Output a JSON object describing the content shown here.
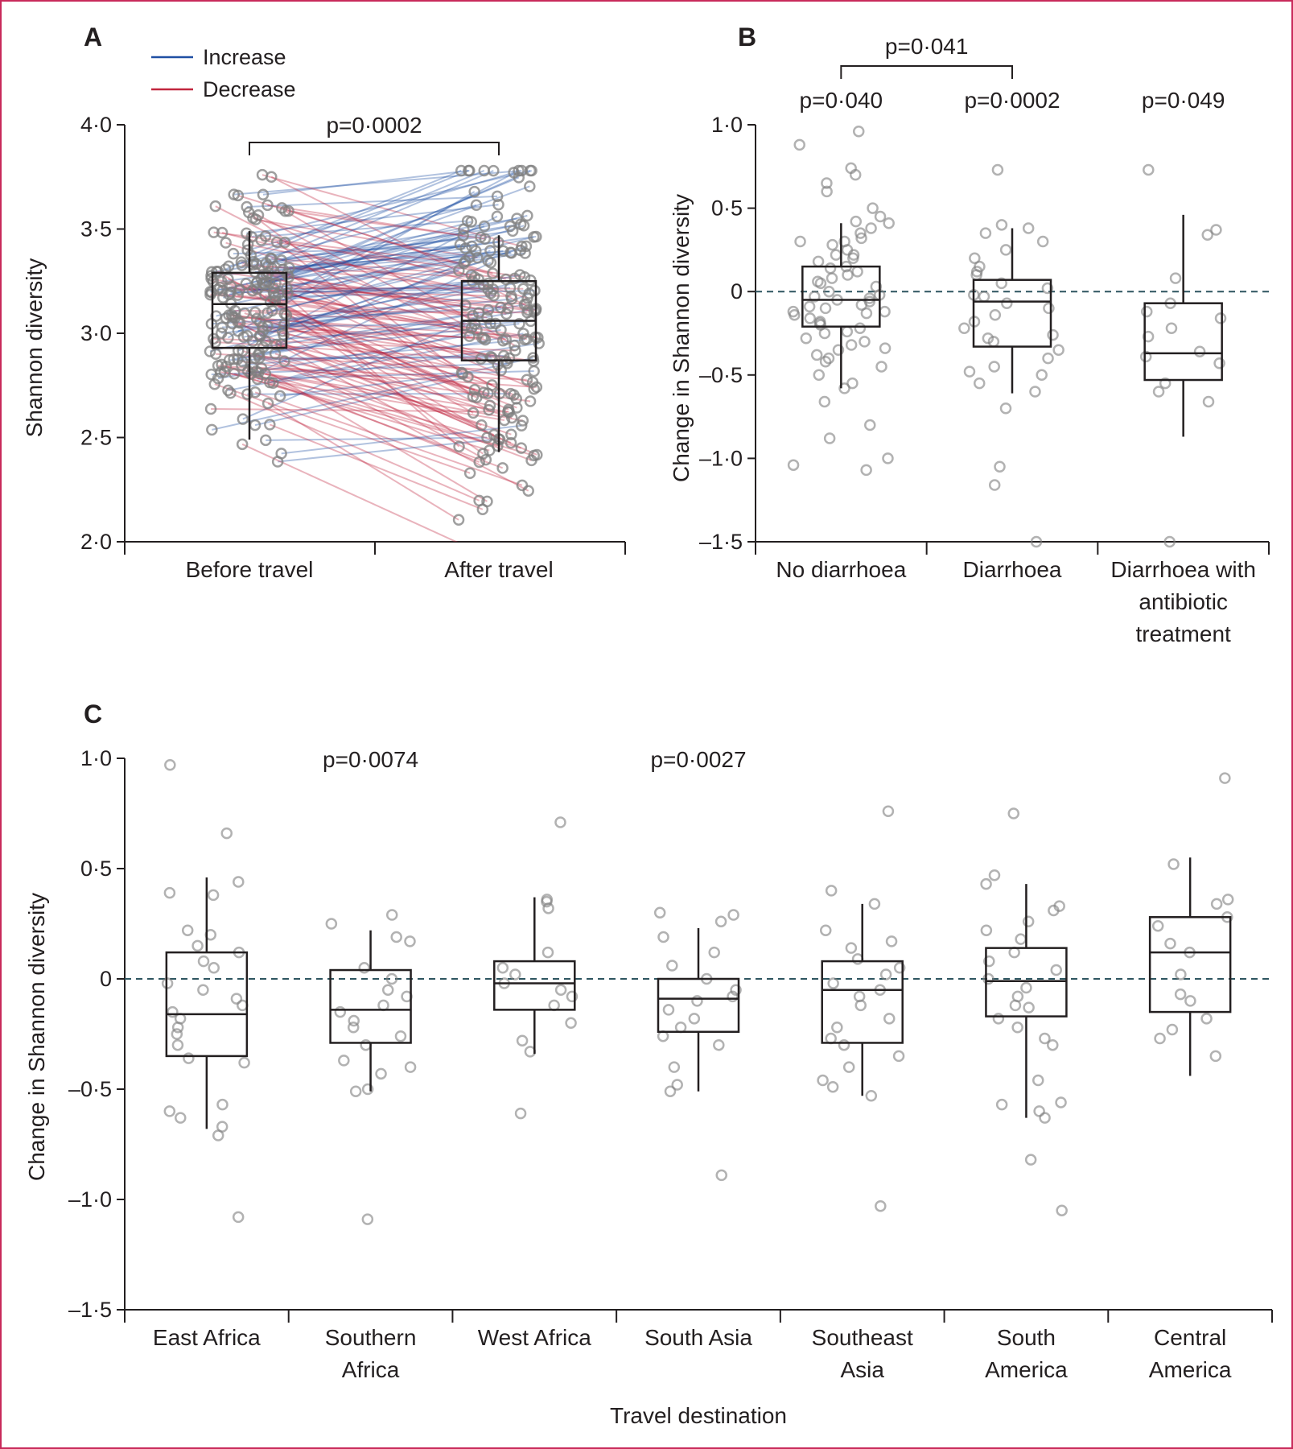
{
  "colors": {
    "increase": "#1f4fa3",
    "decrease": "#c1263e",
    "point": "#7f7f7f",
    "box": "#231f20",
    "reference_line": "#2e5560",
    "frame": "#c8295a"
  },
  "chart_data": [
    {
      "panel": "A",
      "type": "box-paired",
      "ylabel": "Shannon diversity",
      "ylim": [
        2.0,
        4.0
      ],
      "yticks": [
        {
          "v": 4.0,
          "label": "4·0"
        },
        {
          "v": 3.5,
          "label": "3·5"
        },
        {
          "v": 3.0,
          "label": "3·0"
        },
        {
          "v": 2.5,
          "label": "2·5"
        },
        {
          "v": 2.0,
          "label": "2·0"
        }
      ],
      "categories": [
        "Before travel",
        "After travel"
      ],
      "legend": [
        {
          "name": "Increase",
          "color": "#1f4fa3"
        },
        {
          "name": "Decrease",
          "color": "#c1263e"
        }
      ],
      "legend_position": "top-left",
      "boxes": [
        {
          "category": "Before travel",
          "whisker_low": 2.49,
          "q1": 2.93,
          "median": 3.14,
          "q3": 3.29,
          "whisker_high": 3.49
        },
        {
          "category": "After travel",
          "whisker_low": 2.43,
          "q1": 2.87,
          "median": 3.06,
          "q3": 3.25,
          "whisker_high": 3.47
        }
      ],
      "brackets": [
        {
          "from": "Before travel",
          "to": "After travel",
          "label": "p=0·0002"
        }
      ],
      "n_pairs": 180
    },
    {
      "panel": "B",
      "type": "box",
      "ylabel": "Change in Shannon diversity",
      "ylim": [
        -1.5,
        1.0
      ],
      "yticks": [
        {
          "v": 1.0,
          "label": "1·0"
        },
        {
          "v": 0.5,
          "label": "0·5"
        },
        {
          "v": 0,
          "label": "0"
        },
        {
          "v": -0.5,
          "label": "–0·5"
        },
        {
          "v": -1.0,
          "label": "–1·0"
        },
        {
          "v": -1.5,
          "label": "–1·5"
        }
      ],
      "categories": [
        "No diarrhoea",
        "Diarrhoea",
        "Diarrhoea with antibiotic treatment"
      ],
      "category_lines": [
        [
          "No diarrhoea"
        ],
        [
          "Diarrhoea"
        ],
        [
          "Diarrhoea with",
          "antibiotic",
          "treatment"
        ]
      ],
      "reference_line": 0,
      "boxes": [
        {
          "category": "No diarrhoea",
          "whisker_low": -0.58,
          "q1": -0.21,
          "median": -0.05,
          "q3": 0.15,
          "whisker_high": 0.41,
          "p": "p=0·040"
        },
        {
          "category": "Diarrhoea",
          "whisker_low": -0.61,
          "q1": -0.33,
          "median": -0.06,
          "q3": 0.07,
          "whisker_high": 0.38,
          "p": "p=0·0002"
        },
        {
          "category": "Diarrhoea with antibiotic treatment",
          "whisker_low": -0.87,
          "q1": -0.53,
          "median": -0.37,
          "q3": -0.07,
          "whisker_high": 0.46,
          "p": "p=0·049"
        }
      ],
      "brackets": [
        {
          "from": "No diarrhoea",
          "to": "Diarrhoea",
          "label": "p=0·041"
        }
      ],
      "points": [
        [
          -0.05,
          0.88,
          0.96,
          0.7,
          0.74,
          0.65,
          0.5,
          0.45,
          0.41,
          0.38,
          0.35,
          0.32,
          0.3,
          0.28,
          0.25,
          0.22,
          0.2,
          0.18,
          0.15,
          0.12,
          0.1,
          0.08,
          0.05,
          0.03,
          0.0,
          -0.02,
          -0.04,
          -0.06,
          -0.08,
          -0.1,
          -0.12,
          -0.14,
          -0.16,
          -0.18,
          -0.2,
          -0.22,
          -0.25,
          -0.28,
          -0.3,
          -0.32,
          -0.35,
          -0.38,
          -0.4,
          -0.45,
          -0.5,
          -0.55,
          -0.58,
          -0.66,
          -0.8,
          -0.88,
          -1.0,
          -1.04,
          -1.07,
          0.6,
          0.42,
          0.3,
          0.22,
          0.14,
          0.06,
          -0.03,
          -0.09,
          -0.13,
          -0.19,
          -0.24,
          -0.34,
          -0.42,
          -0.12
        ],
        [
          0.73,
          0.4,
          0.38,
          0.35,
          0.3,
          0.25,
          0.2,
          0.15,
          0.1,
          0.05,
          0.02,
          -0.03,
          -0.07,
          -0.1,
          -0.14,
          -0.18,
          -0.22,
          -0.26,
          -0.3,
          -0.35,
          -0.4,
          -0.45,
          -0.5,
          -0.55,
          -0.6,
          -0.7,
          -1.05,
          -1.16,
          -1.5,
          0.12,
          -0.02,
          -0.28,
          -0.48
        ],
        [
          0.73,
          0.37,
          0.34,
          0.08,
          -0.07,
          -0.12,
          -0.16,
          -0.22,
          -0.27,
          -0.36,
          -0.39,
          -0.43,
          -0.55,
          -0.6,
          -0.66,
          -1.5
        ]
      ]
    },
    {
      "panel": "C",
      "type": "box",
      "xlabel": "Travel destination",
      "ylabel": "Change in Shannon diversity",
      "ylim": [
        -1.5,
        1.0
      ],
      "yticks": [
        {
          "v": 1.0,
          "label": "1·0"
        },
        {
          "v": 0.5,
          "label": "0·5"
        },
        {
          "v": 0,
          "label": "0"
        },
        {
          "v": -0.5,
          "label": "–0·5"
        },
        {
          "v": -1.0,
          "label": "–1·0"
        },
        {
          "v": -1.5,
          "label": "–1·5"
        }
      ],
      "categories": [
        "East Africa",
        "Southern Africa",
        "West Africa",
        "South Asia",
        "Southeast Asia",
        "South America",
        "Central America"
      ],
      "category_lines": [
        [
          "East Africa"
        ],
        [
          "Southern",
          "Africa"
        ],
        [
          "West Africa"
        ],
        [
          "South Asia"
        ],
        [
          "Southeast",
          "Asia"
        ],
        [
          "South",
          "America"
        ],
        [
          "Central",
          "America"
        ]
      ],
      "reference_line": 0,
      "boxes": [
        {
          "category": "East Africa",
          "whisker_low": -0.68,
          "q1": -0.35,
          "median": -0.16,
          "q3": 0.12,
          "whisker_high": 0.46,
          "p": ""
        },
        {
          "category": "Southern Africa",
          "whisker_low": -0.51,
          "q1": -0.29,
          "median": -0.14,
          "q3": 0.04,
          "whisker_high": 0.22,
          "p": "p=0·0074"
        },
        {
          "category": "West Africa",
          "whisker_low": -0.34,
          "q1": -0.14,
          "median": -0.02,
          "q3": 0.08,
          "whisker_high": 0.37,
          "p": ""
        },
        {
          "category": "South Asia",
          "whisker_low": -0.51,
          "q1": -0.24,
          "median": -0.09,
          "q3": 0.0,
          "whisker_high": 0.23,
          "p": "p=0·0027"
        },
        {
          "category": "Southeast Asia",
          "whisker_low": -0.53,
          "q1": -0.29,
          "median": -0.05,
          "q3": 0.08,
          "whisker_high": 0.34,
          "p": ""
        },
        {
          "category": "South America",
          "whisker_low": -0.63,
          "q1": -0.17,
          "median": -0.01,
          "q3": 0.14,
          "whisker_high": 0.43,
          "p": ""
        },
        {
          "category": "Central America",
          "whisker_low": -0.44,
          "q1": -0.15,
          "median": 0.12,
          "q3": 0.28,
          "whisker_high": 0.55,
          "p": ""
        }
      ],
      "points": [
        [
          0.97,
          0.66,
          0.44,
          0.39,
          0.38,
          0.22,
          0.2,
          0.15,
          0.12,
          0.08,
          0.05,
          -0.02,
          -0.05,
          -0.09,
          -0.12,
          -0.15,
          -0.18,
          -0.22,
          -0.25,
          -0.3,
          -0.36,
          -0.38,
          -0.57,
          -0.6,
          -0.63,
          -0.67,
          -0.71,
          -1.08
        ],
        [
          0.29,
          0.25,
          0.19,
          0.17,
          0.05,
          0.0,
          -0.05,
          -0.08,
          -0.12,
          -0.15,
          -0.19,
          -0.22,
          -0.26,
          -0.3,
          -0.37,
          -0.4,
          -0.43,
          -0.5,
          -0.51,
          -1.09
        ],
        [
          0.71,
          0.36,
          0.35,
          0.32,
          0.12,
          0.05,
          0.02,
          -0.02,
          -0.05,
          -0.08,
          -0.12,
          -0.2,
          -0.28,
          -0.33,
          -0.61
        ],
        [
          0.3,
          0.29,
          0.26,
          0.19,
          0.12,
          0.06,
          0.0,
          -0.05,
          -0.08,
          -0.1,
          -0.14,
          -0.18,
          -0.22,
          -0.26,
          -0.3,
          -0.4,
          -0.48,
          -0.51,
          -0.89
        ],
        [
          0.76,
          0.4,
          0.34,
          0.22,
          0.17,
          0.14,
          0.09,
          0.05,
          0.02,
          -0.02,
          -0.05,
          -0.08,
          -0.12,
          -0.18,
          -0.22,
          -0.27,
          -0.3,
          -0.35,
          -0.4,
          -0.46,
          -0.49,
          -0.53,
          -1.03
        ],
        [
          0.75,
          0.47,
          0.43,
          0.33,
          0.31,
          0.26,
          0.22,
          0.18,
          0.12,
          0.08,
          0.04,
          0.0,
          -0.04,
          -0.08,
          -0.12,
          -0.18,
          -0.22,
          -0.27,
          -0.3,
          -0.46,
          -0.56,
          -0.57,
          -0.6,
          -0.63,
          -0.82,
          -1.05,
          -0.13
        ],
        [
          0.91,
          0.52,
          0.36,
          0.34,
          0.28,
          0.24,
          0.16,
          0.12,
          0.02,
          -0.07,
          -0.1,
          -0.18,
          -0.23,
          -0.27,
          -0.35
        ]
      ]
    }
  ]
}
